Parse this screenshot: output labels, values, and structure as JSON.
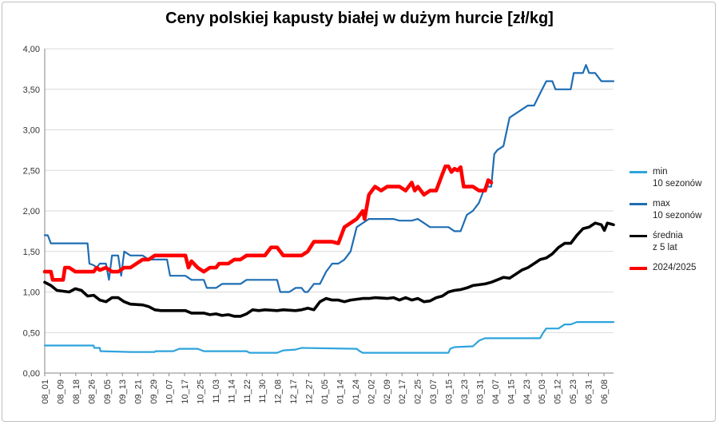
{
  "chart_data": {
    "type": "line",
    "title": "Ceny polskiej kapusty białej w dużym hurcie [zł/kg]",
    "xlabel": "",
    "ylabel": "",
    "ylim": [
      0,
      4
    ],
    "y_ticks": [
      "0,00",
      "0,50",
      "1,00",
      "1,50",
      "2,00",
      "2,50",
      "3,00",
      "3,50",
      "4,00"
    ],
    "grid": "horizontal",
    "legend_position": "right",
    "categories": [
      "08_01",
      "08_09",
      "08_18",
      "08_26",
      "09_05",
      "09_13",
      "09_21",
      "09_29",
      "10_07",
      "10_17",
      "10_25",
      "11_03",
      "11_14",
      "11_22",
      "11_30",
      "12_08",
      "12_17",
      "12_27",
      "01_05",
      "01_14",
      "01_24",
      "02_02",
      "02_09",
      "02_17",
      "02_25",
      "03_07",
      "03_15",
      "03_23",
      "03_31",
      "04_07",
      "04_15",
      "04_23",
      "05_03",
      "05_12",
      "05_23",
      "05_31",
      "06_08"
    ],
    "series": [
      {
        "name": "min\n10 sezonów",
        "color": "#2ea3dc",
        "points": [
          [
            0,
            0.34
          ],
          [
            8,
            0.34
          ],
          [
            8.1,
            0.31
          ],
          [
            9,
            0.31
          ],
          [
            9.1,
            0.27
          ],
          [
            14,
            0.26
          ],
          [
            18,
            0.26
          ],
          [
            18.1,
            0.27
          ],
          [
            21,
            0.27
          ],
          [
            22,
            0.3
          ],
          [
            25,
            0.3
          ],
          [
            26,
            0.27
          ],
          [
            33,
            0.27
          ],
          [
            33.5,
            0.25
          ],
          [
            38,
            0.25
          ],
          [
            39,
            0.28
          ],
          [
            41,
            0.29
          ],
          [
            42,
            0.31
          ],
          [
            51,
            0.3
          ],
          [
            51.5,
            0.27
          ],
          [
            52,
            0.25
          ],
          [
            66,
            0.25
          ],
          [
            66.3,
            0.3
          ],
          [
            67,
            0.32
          ],
          [
            70,
            0.33
          ],
          [
            71,
            0.4
          ],
          [
            72,
            0.43
          ],
          [
            81,
            0.43
          ],
          [
            81.5,
            0.5
          ],
          [
            82,
            0.55
          ],
          [
            84,
            0.55
          ],
          [
            85,
            0.6
          ],
          [
            86,
            0.6
          ],
          [
            87,
            0.63
          ],
          [
            93,
            0.63
          ]
        ]
      },
      {
        "name": "max\n10 sezonów",
        "color": "#1f6db3",
        "points": [
          [
            0,
            1.7
          ],
          [
            0.5,
            1.7
          ],
          [
            1,
            1.6
          ],
          [
            7,
            1.6
          ],
          [
            7.3,
            1.35
          ],
          [
            8,
            1.33
          ],
          [
            8.5,
            1.3
          ],
          [
            9,
            1.35
          ],
          [
            10,
            1.35
          ],
          [
            10.5,
            1.15
          ],
          [
            11,
            1.45
          ],
          [
            12,
            1.45
          ],
          [
            12.5,
            1.2
          ],
          [
            13,
            1.5
          ],
          [
            14,
            1.45
          ],
          [
            16,
            1.45
          ],
          [
            17,
            1.4
          ],
          [
            20,
            1.4
          ],
          [
            20.5,
            1.2
          ],
          [
            23,
            1.2
          ],
          [
            24,
            1.15
          ],
          [
            26,
            1.15
          ],
          [
            26.5,
            1.05
          ],
          [
            28,
            1.05
          ],
          [
            29,
            1.1
          ],
          [
            32,
            1.1
          ],
          [
            33,
            1.15
          ],
          [
            38,
            1.15
          ],
          [
            38.5,
            1.0
          ],
          [
            40,
            1.0
          ],
          [
            41,
            1.05
          ],
          [
            42,
            1.05
          ],
          [
            42.5,
            1.0
          ],
          [
            43,
            1.0
          ],
          [
            44,
            1.1
          ],
          [
            45,
            1.1
          ],
          [
            46,
            1.25
          ],
          [
            47,
            1.35
          ],
          [
            48,
            1.35
          ],
          [
            49,
            1.4
          ],
          [
            50,
            1.5
          ],
          [
            51,
            1.8
          ],
          [
            52,
            1.85
          ],
          [
            53,
            1.9
          ],
          [
            57,
            1.9
          ],
          [
            58,
            1.88
          ],
          [
            60,
            1.88
          ],
          [
            61,
            1.9
          ],
          [
            62,
            1.85
          ],
          [
            63,
            1.8
          ],
          [
            66,
            1.8
          ],
          [
            67,
            1.75
          ],
          [
            68,
            1.75
          ],
          [
            69,
            1.95
          ],
          [
            70,
            2.0
          ],
          [
            71,
            2.1
          ],
          [
            72,
            2.3
          ],
          [
            73,
            2.3
          ],
          [
            73.5,
            2.7
          ],
          [
            74,
            2.75
          ],
          [
            75,
            2.8
          ],
          [
            76,
            3.15
          ],
          [
            77,
            3.2
          ],
          [
            78,
            3.25
          ],
          [
            79,
            3.3
          ],
          [
            80,
            3.3
          ],
          [
            81,
            3.45
          ],
          [
            82,
            3.6
          ],
          [
            83,
            3.6
          ],
          [
            83.5,
            3.5
          ],
          [
            86,
            3.5
          ],
          [
            86.5,
            3.7
          ],
          [
            88,
            3.7
          ],
          [
            88.5,
            3.8
          ],
          [
            89,
            3.7
          ],
          [
            90,
            3.7
          ],
          [
            91,
            3.6
          ],
          [
            93,
            3.6
          ]
        ]
      },
      {
        "name": "średnia\nz 5 lat",
        "color": "#000000",
        "points": [
          [
            0,
            1.12
          ],
          [
            1,
            1.08
          ],
          [
            2,
            1.02
          ],
          [
            4,
            1.0
          ],
          [
            5,
            1.04
          ],
          [
            6,
            1.02
          ],
          [
            7,
            0.95
          ],
          [
            8,
            0.96
          ],
          [
            9,
            0.9
          ],
          [
            10,
            0.88
          ],
          [
            11,
            0.93
          ],
          [
            12,
            0.93
          ],
          [
            13,
            0.88
          ],
          [
            14,
            0.85
          ],
          [
            16,
            0.84
          ],
          [
            17,
            0.82
          ],
          [
            18,
            0.78
          ],
          [
            19,
            0.77
          ],
          [
            20,
            0.77
          ],
          [
            23,
            0.77
          ],
          [
            24,
            0.74
          ],
          [
            26,
            0.74
          ],
          [
            27,
            0.72
          ],
          [
            28,
            0.73
          ],
          [
            29,
            0.71
          ],
          [
            30,
            0.72
          ],
          [
            31,
            0.7
          ],
          [
            32,
            0.7
          ],
          [
            33,
            0.73
          ],
          [
            34,
            0.78
          ],
          [
            35,
            0.77
          ],
          [
            36,
            0.78
          ],
          [
            38,
            0.77
          ],
          [
            39,
            0.78
          ],
          [
            41,
            0.77
          ],
          [
            42,
            0.78
          ],
          [
            43,
            0.8
          ],
          [
            44,
            0.78
          ],
          [
            45,
            0.88
          ],
          [
            46,
            0.92
          ],
          [
            47,
            0.9
          ],
          [
            48,
            0.9
          ],
          [
            49,
            0.88
          ],
          [
            50,
            0.9
          ],
          [
            52,
            0.92
          ],
          [
            53,
            0.92
          ],
          [
            54,
            0.93
          ],
          [
            56,
            0.92
          ],
          [
            57,
            0.93
          ],
          [
            58,
            0.9
          ],
          [
            59,
            0.93
          ],
          [
            60,
            0.9
          ],
          [
            61,
            0.92
          ],
          [
            62,
            0.88
          ],
          [
            63,
            0.89
          ],
          [
            64,
            0.93
          ],
          [
            65,
            0.95
          ],
          [
            66,
            1.0
          ],
          [
            67,
            1.02
          ],
          [
            68,
            1.03
          ],
          [
            69,
            1.05
          ],
          [
            70,
            1.08
          ],
          [
            72,
            1.1
          ],
          [
            73,
            1.12
          ],
          [
            74,
            1.15
          ],
          [
            75,
            1.18
          ],
          [
            76,
            1.17
          ],
          [
            77,
            1.22
          ],
          [
            78,
            1.27
          ],
          [
            79,
            1.3
          ],
          [
            80,
            1.35
          ],
          [
            81,
            1.4
          ],
          [
            82,
            1.42
          ],
          [
            83,
            1.47
          ],
          [
            84,
            1.55
          ],
          [
            85,
            1.6
          ],
          [
            86,
            1.6
          ],
          [
            87,
            1.7
          ],
          [
            88,
            1.78
          ],
          [
            89,
            1.8
          ],
          [
            90,
            1.85
          ],
          [
            91,
            1.83
          ],
          [
            91.5,
            1.76
          ],
          [
            92,
            1.85
          ],
          [
            93,
            1.83
          ]
        ]
      },
      {
        "name": "2024/2025",
        "color": "#ff0000",
        "points": [
          [
            0,
            1.25
          ],
          [
            1,
            1.25
          ],
          [
            1.3,
            1.15
          ],
          [
            3,
            1.15
          ],
          [
            3.3,
            1.3
          ],
          [
            4,
            1.3
          ],
          [
            5,
            1.25
          ],
          [
            8,
            1.25
          ],
          [
            8.5,
            1.3
          ],
          [
            9,
            1.27
          ],
          [
            10,
            1.3
          ],
          [
            11,
            1.25
          ],
          [
            12,
            1.25
          ],
          [
            13,
            1.3
          ],
          [
            14,
            1.3
          ],
          [
            15,
            1.35
          ],
          [
            16,
            1.4
          ],
          [
            17,
            1.4
          ],
          [
            18,
            1.45
          ],
          [
            23,
            1.45
          ],
          [
            23.5,
            1.3
          ],
          [
            24,
            1.38
          ],
          [
            25,
            1.3
          ],
          [
            26,
            1.25
          ],
          [
            27,
            1.3
          ],
          [
            28,
            1.3
          ],
          [
            28.5,
            1.35
          ],
          [
            30,
            1.35
          ],
          [
            31,
            1.4
          ],
          [
            32,
            1.4
          ],
          [
            33,
            1.45
          ],
          [
            36,
            1.45
          ],
          [
            37,
            1.55
          ],
          [
            38,
            1.55
          ],
          [
            39,
            1.45
          ],
          [
            42,
            1.45
          ],
          [
            43,
            1.5
          ],
          [
            44,
            1.62
          ],
          [
            47,
            1.62
          ],
          [
            48,
            1.6
          ],
          [
            49,
            1.8
          ],
          [
            50,
            1.85
          ],
          [
            51,
            1.9
          ],
          [
            51.5,
            1.95
          ],
          [
            52,
            2.0
          ],
          [
            52.3,
            1.9
          ],
          [
            53,
            2.2
          ],
          [
            54,
            2.3
          ],
          [
            55,
            2.25
          ],
          [
            56,
            2.3
          ],
          [
            58,
            2.3
          ],
          [
            59,
            2.25
          ],
          [
            60,
            2.35
          ],
          [
            60.5,
            2.25
          ],
          [
            61,
            2.3
          ],
          [
            62,
            2.2
          ],
          [
            63,
            2.25
          ],
          [
            64,
            2.25
          ],
          [
            65,
            2.45
          ],
          [
            65.5,
            2.55
          ],
          [
            66,
            2.55
          ],
          [
            66.5,
            2.48
          ],
          [
            67,
            2.52
          ],
          [
            67.5,
            2.5
          ],
          [
            68,
            2.54
          ],
          [
            68.5,
            2.3
          ],
          [
            70,
            2.3
          ],
          [
            71,
            2.25
          ],
          [
            72,
            2.25
          ],
          [
            72.5,
            2.38
          ],
          [
            73,
            2.35
          ]
        ]
      }
    ]
  }
}
